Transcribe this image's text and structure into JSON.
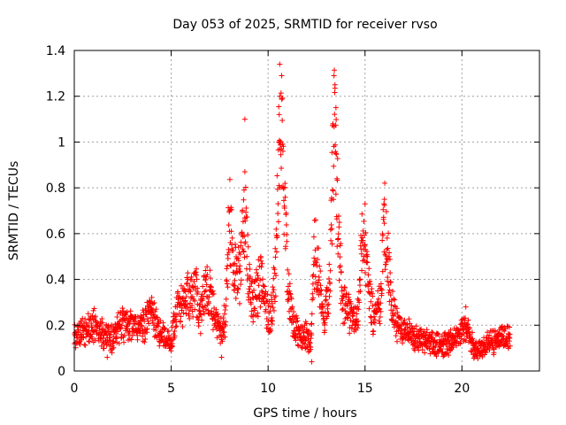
{
  "chart_data": {
    "type": "scatter",
    "title": "Day 053 of 2025, SRMTID for receiver rvso",
    "xlabel": "GPS time / hours",
    "ylabel": "SRMTID / TECUs",
    "xlim": [
      0,
      24
    ],
    "ylim": [
      0,
      1.4
    ],
    "xticks": [
      0,
      5,
      10,
      15,
      20
    ],
    "yticks": [
      0,
      0.2,
      0.4,
      0.6,
      0.8,
      1,
      1.2,
      1.4
    ],
    "xtick_labels": [
      "0",
      "5",
      "10",
      "15",
      "20"
    ],
    "ytick_labels": [
      "0",
      "0.2",
      "0.4",
      "0.6",
      "0.8",
      "1",
      "1.2",
      "1.4"
    ],
    "grid": true,
    "marker": "+",
    "color": "#ff0000",
    "series": [
      {
        "name": "SRMTID",
        "profile": [
          [
            0.0,
            0.16
          ],
          [
            0.5,
            0.17
          ],
          [
            1.0,
            0.2
          ],
          [
            1.5,
            0.16
          ],
          [
            2.0,
            0.14
          ],
          [
            2.5,
            0.21
          ],
          [
            3.0,
            0.2
          ],
          [
            3.5,
            0.19
          ],
          [
            4.0,
            0.26
          ],
          [
            4.5,
            0.16
          ],
          [
            5.0,
            0.12
          ],
          [
            5.3,
            0.27
          ],
          [
            5.7,
            0.3
          ],
          [
            6.2,
            0.37
          ],
          [
            6.5,
            0.25
          ],
          [
            6.8,
            0.35
          ],
          [
            7.1,
            0.3
          ],
          [
            7.5,
            0.15
          ],
          [
            7.8,
            0.22
          ],
          [
            8.0,
            0.73
          ],
          [
            8.2,
            0.45
          ],
          [
            8.5,
            0.42
          ],
          [
            8.8,
            0.67
          ],
          [
            9.0,
            0.4
          ],
          [
            9.3,
            0.3
          ],
          [
            9.6,
            0.4
          ],
          [
            9.8,
            0.33
          ],
          [
            10.1,
            0.21
          ],
          [
            10.4,
            0.45
          ],
          [
            10.6,
            1.15
          ],
          [
            10.8,
            0.82
          ],
          [
            11.0,
            0.4
          ],
          [
            11.3,
            0.2
          ],
          [
            11.6,
            0.16
          ],
          [
            12.0,
            0.15
          ],
          [
            12.2,
            0.1
          ],
          [
            12.4,
            0.55
          ],
          [
            12.6,
            0.4
          ],
          [
            12.9,
            0.2
          ],
          [
            13.2,
            0.45
          ],
          [
            13.4,
            1.1
          ],
          [
            13.6,
            0.7
          ],
          [
            13.8,
            0.3
          ],
          [
            14.2,
            0.25
          ],
          [
            14.6,
            0.2
          ],
          [
            14.9,
            0.6
          ],
          [
            15.2,
            0.35
          ],
          [
            15.5,
            0.2
          ],
          [
            15.8,
            0.3
          ],
          [
            16.0,
            0.68
          ],
          [
            16.3,
            0.35
          ],
          [
            16.6,
            0.2
          ],
          [
            17.0,
            0.17
          ],
          [
            17.5,
            0.15
          ],
          [
            18.0,
            0.13
          ],
          [
            18.5,
            0.12
          ],
          [
            19.0,
            0.11
          ],
          [
            19.5,
            0.13
          ],
          [
            20.0,
            0.18
          ],
          [
            20.3,
            0.16
          ],
          [
            20.7,
            0.09
          ],
          [
            21.0,
            0.1
          ],
          [
            21.5,
            0.13
          ],
          [
            22.0,
            0.14
          ],
          [
            22.5,
            0.15
          ]
        ],
        "outliers": [
          [
            8.8,
            1.1
          ],
          [
            8.8,
            0.87
          ],
          [
            10.6,
            1.34
          ],
          [
            10.7,
            1.29
          ],
          [
            10.6,
            1.2
          ],
          [
            10.55,
            1.0
          ],
          [
            13.4,
            1.29
          ],
          [
            13.45,
            1.25
          ],
          [
            13.5,
            1.15
          ],
          [
            13.5,
            0.95
          ],
          [
            13.55,
            0.84
          ],
          [
            7.0,
            0.44
          ],
          [
            12.25,
            0.04
          ],
          [
            15.0,
            0.73
          ],
          [
            16.0,
            0.75
          ],
          [
            20.2,
            0.28
          ],
          [
            7.6,
            0.06
          ],
          [
            1.7,
            0.06
          ]
        ]
      }
    ]
  }
}
